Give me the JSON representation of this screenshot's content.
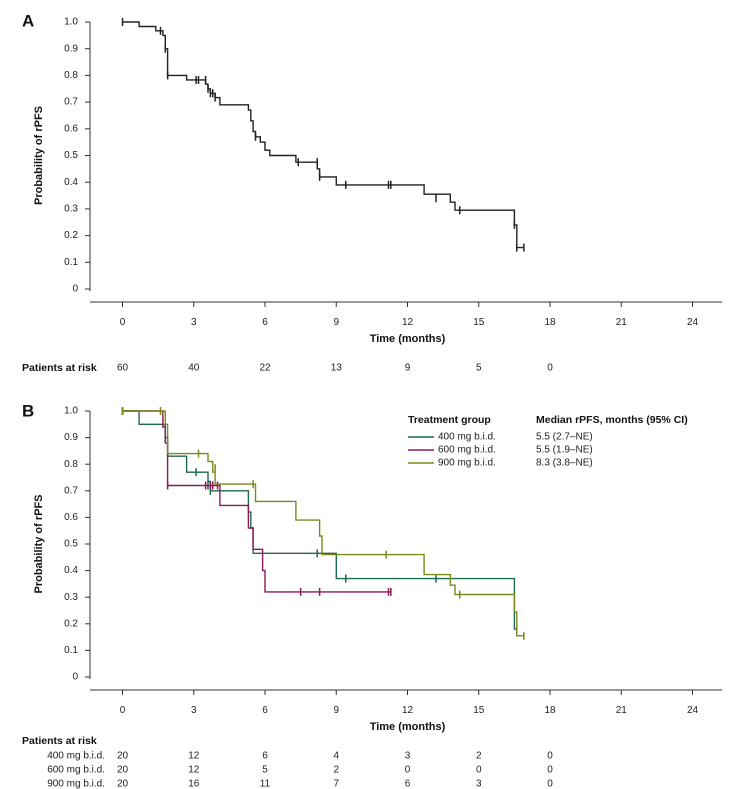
{
  "chart_data": [
    {
      "panel": "A",
      "type": "line",
      "xlabel": "Time (months)",
      "ylabel": "Probability of rPFS",
      "xlim": [
        0,
        24
      ],
      "ylim": [
        0,
        1
      ],
      "xticks": [
        0,
        3,
        6,
        9,
        12,
        15,
        18,
        21,
        24
      ],
      "xtick_labels": [
        "0",
        "3",
        "6",
        "9",
        "12",
        "15",
        "18",
        "21",
        "24"
      ],
      "yticks": [
        0,
        0.1,
        0.2,
        0.3,
        0.4,
        0.5,
        0.6,
        0.7,
        0.8,
        0.9,
        1.0
      ],
      "ytick_labels": [
        "0",
        "0.1",
        "0.2",
        "0.3",
        "0.4",
        "0.5",
        "0.6",
        "0.7",
        "0.8",
        "0.9",
        "1.0"
      ],
      "series": [
        {
          "name": "All patients",
          "color": "#222222",
          "steps": [
            [
              0,
              1.0
            ],
            [
              0.7,
              0.983
            ],
            [
              1.4,
              0.967
            ],
            [
              1.7,
              0.95
            ],
            [
              1.8,
              0.9
            ],
            [
              1.9,
              0.8
            ],
            [
              2.7,
              0.783
            ],
            [
              3.5,
              0.767
            ],
            [
              3.6,
              0.75
            ],
            [
              3.7,
              0.733
            ],
            [
              3.9,
              0.717
            ],
            [
              4.1,
              0.69
            ],
            [
              5.3,
              0.67
            ],
            [
              5.4,
              0.63
            ],
            [
              5.5,
              0.59
            ],
            [
              5.6,
              0.57
            ],
            [
              5.8,
              0.55
            ],
            [
              6.0,
              0.52
            ],
            [
              6.2,
              0.5
            ],
            [
              7.3,
              0.475
            ],
            [
              8.2,
              0.45
            ],
            [
              8.3,
              0.42
            ],
            [
              9.0,
              0.39
            ],
            [
              12.7,
              0.355
            ],
            [
              13.8,
              0.325
            ],
            [
              14.0,
              0.295
            ],
            [
              16.5,
              0.24
            ],
            [
              16.6,
              0.155
            ]
          ],
          "end": 16.9,
          "censors": [
            [
              0,
              1.0
            ],
            [
              1.6,
              0.967
            ],
            [
              1.8,
              0.9
            ],
            [
              1.9,
              0.8
            ],
            [
              3.1,
              0.783
            ],
            [
              3.2,
              0.783
            ],
            [
              3.5,
              0.783
            ],
            [
              3.6,
              0.75
            ],
            [
              3.7,
              0.733
            ],
            [
              3.8,
              0.733
            ],
            [
              3.9,
              0.717
            ],
            [
              5.6,
              0.57
            ],
            [
              7.4,
              0.475
            ],
            [
              8.2,
              0.475
            ],
            [
              8.3,
              0.42
            ],
            [
              9.4,
              0.39
            ],
            [
              11.2,
              0.39
            ],
            [
              11.3,
              0.39
            ],
            [
              13.2,
              0.34
            ],
            [
              14.2,
              0.295
            ],
            [
              16.5,
              0.24
            ],
            [
              16.6,
              0.155
            ],
            [
              16.9,
              0.155
            ]
          ]
        }
      ],
      "patients_at_risk": {
        "title": "Patients at risk",
        "rows": [
          {
            "label": "",
            "counts": [
              "60",
              "40",
              "22",
              "13",
              "9",
              "5",
              "0"
            ]
          }
        ]
      }
    },
    {
      "panel": "B",
      "type": "line",
      "xlabel": "Time (months)",
      "ylabel": "Probability of rPFS",
      "xlim": [
        0,
        24
      ],
      "ylim": [
        0,
        1
      ],
      "xticks": [
        0,
        3,
        6,
        9,
        12,
        15,
        18,
        21,
        24
      ],
      "xtick_labels": [
        "0",
        "3",
        "6",
        "9",
        "12",
        "15",
        "18",
        "21",
        "24"
      ],
      "yticks": [
        0,
        0.1,
        0.2,
        0.3,
        0.4,
        0.5,
        0.6,
        0.7,
        0.8,
        0.9,
        1.0
      ],
      "ytick_labels": [
        "0",
        "0.1",
        "0.2",
        "0.3",
        "0.4",
        "0.5",
        "0.6",
        "0.7",
        "0.8",
        "0.9",
        "1.0"
      ],
      "legend": {
        "head_group": "Treatment group",
        "head_median": "Median rPFS, months (95% CI)",
        "position": "top-right"
      },
      "series": [
        {
          "name": "400 mg b.i.d.",
          "median": "5.5 (2.7–NE)",
          "color": "#1e6a4c",
          "steps": [
            [
              0,
              1.0
            ],
            [
              0.7,
              0.95
            ],
            [
              1.8,
              0.9
            ],
            [
              1.9,
              0.83
            ],
            [
              2.7,
              0.77
            ],
            [
              3.6,
              0.735
            ],
            [
              3.7,
              0.7
            ],
            [
              5.3,
              0.62
            ],
            [
              5.4,
              0.56
            ],
            [
              5.5,
              0.465
            ],
            [
              9.0,
              0.37
            ],
            [
              16.5,
              0.18
            ]
          ],
          "end": 16.6,
          "censors": [
            [
              0,
              1.0
            ],
            [
              1.8,
              0.9
            ],
            [
              3.1,
              0.77
            ],
            [
              3.6,
              0.72
            ],
            [
              3.7,
              0.7
            ],
            [
              8.2,
              0.465
            ],
            [
              9.4,
              0.37
            ],
            [
              13.2,
              0.37
            ],
            [
              16.6,
              0.18
            ]
          ]
        },
        {
          "name": "600 mg b.i.d.",
          "median": "5.5 (1.9–NE)",
          "color": "#8b1a5c",
          "steps": [
            [
              0,
              1.0
            ],
            [
              1.7,
              0.94
            ],
            [
              1.8,
              0.88
            ],
            [
              1.9,
              0.72
            ],
            [
              4.1,
              0.645
            ],
            [
              5.3,
              0.56
            ],
            [
              5.5,
              0.48
            ],
            [
              5.9,
              0.4
            ],
            [
              6.0,
              0.32
            ]
          ],
          "end": 11.3,
          "censors": [
            [
              0,
              1.0
            ],
            [
              1.9,
              0.72
            ],
            [
              3.5,
              0.72
            ],
            [
              3.7,
              0.72
            ],
            [
              3.8,
              0.72
            ],
            [
              4.0,
              0.72
            ],
            [
              7.5,
              0.32
            ],
            [
              8.3,
              0.32
            ],
            [
              11.2,
              0.32
            ],
            [
              11.3,
              0.32
            ]
          ]
        },
        {
          "name": "900 mg b.i.d.",
          "median": "8.3 (3.8–NE)",
          "color": "#7c8a1c",
          "steps": [
            [
              0,
              1.0
            ],
            [
              1.6,
              1.0
            ],
            [
              1.8,
              0.95
            ],
            [
              1.9,
              0.84
            ],
            [
              3.6,
              0.81
            ],
            [
              3.8,
              0.77
            ],
            [
              3.9,
              0.725
            ],
            [
              5.6,
              0.66
            ],
            [
              7.3,
              0.59
            ],
            [
              8.3,
              0.53
            ],
            [
              8.4,
              0.46
            ],
            [
              12.7,
              0.385
            ],
            [
              13.8,
              0.345
            ],
            [
              14.0,
              0.31
            ],
            [
              16.5,
              0.245
            ],
            [
              16.6,
              0.155
            ]
          ],
          "end": 16.9,
          "censors": [
            [
              0,
              1.0
            ],
            [
              1.6,
              1.0
            ],
            [
              3.2,
              0.84
            ],
            [
              3.9,
              0.785
            ],
            [
              5.5,
              0.725
            ],
            [
              11.1,
              0.46
            ],
            [
              14.2,
              0.31
            ],
            [
              16.9,
              0.155
            ]
          ]
        }
      ],
      "patients_at_risk": {
        "title": "Patients at risk",
        "rows": [
          {
            "label": "400 mg b.i.d.",
            "counts": [
              "20",
              "12",
              "6",
              "4",
              "3",
              "2",
              "0"
            ]
          },
          {
            "label": "600 mg b.i.d.",
            "counts": [
              "20",
              "12",
              "5",
              "2",
              "0",
              "0",
              "0"
            ]
          },
          {
            "label": "900 mg b.i.d.",
            "counts": [
              "20",
              "16",
              "11",
              "7",
              "6",
              "3",
              "0"
            ]
          }
        ]
      }
    }
  ]
}
